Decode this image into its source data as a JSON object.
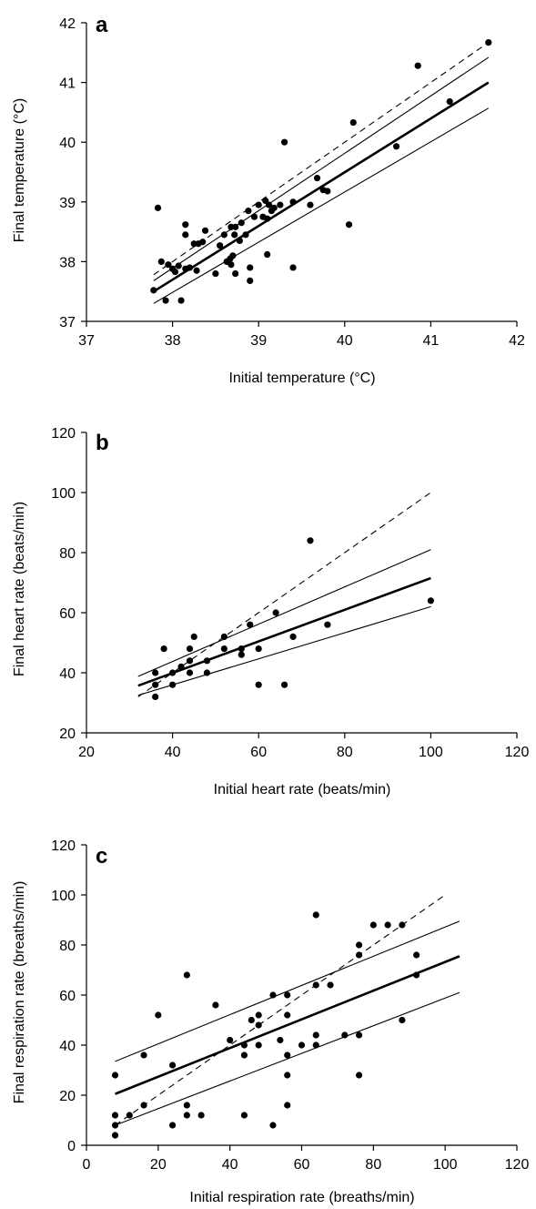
{
  "chart_data": [
    {
      "type": "scatter",
      "panel_label": "a",
      "xlabel": "Initial temperature (°C)",
      "ylabel": "Final temperature (°C)",
      "xlim": [
        37,
        42
      ],
      "ylim": [
        37,
        42
      ],
      "xticks": [
        37,
        38,
        39,
        40,
        41,
        42
      ],
      "yticks": [
        37,
        38,
        39,
        40,
        41,
        42
      ],
      "grid": false,
      "points": [
        [
          37.78,
          37.52
        ],
        [
          37.83,
          38.9
        ],
        [
          37.87,
          38.0
        ],
        [
          37.92,
          37.35
        ],
        [
          37.95,
          37.95
        ],
        [
          38.0,
          37.88
        ],
        [
          38.03,
          37.83
        ],
        [
          38.07,
          37.93
        ],
        [
          38.1,
          37.35
        ],
        [
          38.15,
          37.88
        ],
        [
          38.15,
          38.62
        ],
        [
          38.15,
          38.45
        ],
        [
          38.2,
          37.9
        ],
        [
          38.25,
          38.3
        ],
        [
          38.28,
          37.85
        ],
        [
          38.3,
          38.3
        ],
        [
          38.35,
          38.33
        ],
        [
          38.38,
          38.52
        ],
        [
          38.5,
          37.8
        ],
        [
          38.55,
          38.27
        ],
        [
          38.6,
          38.45
        ],
        [
          38.63,
          38.0
        ],
        [
          38.67,
          38.05
        ],
        [
          38.68,
          37.95
        ],
        [
          38.68,
          38.58
        ],
        [
          38.7,
          38.1
        ],
        [
          38.72,
          38.45
        ],
        [
          38.73,
          38.58
        ],
        [
          38.73,
          37.8
        ],
        [
          38.78,
          38.35
        ],
        [
          38.8,
          38.65
        ],
        [
          38.85,
          38.45
        ],
        [
          38.88,
          38.85
        ],
        [
          38.9,
          37.9
        ],
        [
          38.9,
          37.68
        ],
        [
          38.95,
          38.75
        ],
        [
          39.0,
          38.95
        ],
        [
          39.05,
          38.75
        ],
        [
          39.08,
          39.02
        ],
        [
          39.1,
          38.72
        ],
        [
          39.1,
          38.12
        ],
        [
          39.12,
          38.95
        ],
        [
          39.15,
          38.85
        ],
        [
          39.18,
          38.9
        ],
        [
          39.25,
          38.95
        ],
        [
          39.3,
          40.0
        ],
        [
          39.4,
          37.9
        ],
        [
          39.4,
          39.0
        ],
        [
          39.6,
          38.95
        ],
        [
          39.68,
          39.4
        ],
        [
          39.75,
          39.2
        ],
        [
          39.8,
          39.18
        ],
        [
          40.05,
          38.62
        ],
        [
          40.1,
          40.33
        ],
        [
          40.6,
          39.93
        ],
        [
          40.85,
          41.28
        ],
        [
          41.22,
          40.68
        ],
        [
          41.67,
          41.67
        ]
      ],
      "regression": {
        "x_range": [
          37.78,
          41.67
        ],
        "y_range": [
          37.5,
          41.0
        ]
      },
      "confidence_upper": {
        "x_range": [
          37.78,
          41.67
        ],
        "y_range": [
          37.68,
          41.42
        ]
      },
      "confidence_lower": {
        "x_range": [
          37.78,
          41.67
        ],
        "y_range": [
          37.3,
          40.57
        ]
      },
      "identity_line": {
        "x_range": [
          37.78,
          41.67
        ],
        "y_range": [
          37.78,
          41.67
        ]
      }
    },
    {
      "type": "scatter",
      "panel_label": "b",
      "xlabel": "Initial heart rate (beats/min)",
      "ylabel": "Final heart rate (beats/min)",
      "xlim": [
        20,
        120
      ],
      "ylim": [
        20,
        120
      ],
      "xticks": [
        20,
        40,
        60,
        80,
        100,
        120
      ],
      "yticks": [
        20,
        40,
        60,
        80,
        100,
        120
      ],
      "grid": false,
      "points": [
        [
          36,
          40
        ],
        [
          36,
          36
        ],
        [
          36,
          32
        ],
        [
          38,
          48
        ],
        [
          40,
          36
        ],
        [
          40,
          40
        ],
        [
          42,
          42
        ],
        [
          44,
          44
        ],
        [
          44,
          40
        ],
        [
          44,
          48
        ],
        [
          45,
          52
        ],
        [
          48,
          44
        ],
        [
          48,
          40
        ],
        [
          52,
          52
        ],
        [
          52,
          48
        ],
        [
          56,
          48
        ],
        [
          56,
          46
        ],
        [
          58,
          56
        ],
        [
          60,
          48
        ],
        [
          60,
          36
        ],
        [
          64,
          60
        ],
        [
          66,
          36
        ],
        [
          68,
          52
        ],
        [
          72,
          84
        ],
        [
          76,
          56
        ],
        [
          100,
          64
        ]
      ],
      "regression": {
        "x_range": [
          32,
          100
        ],
        "y_range": [
          35.7,
          71.5
        ]
      },
      "confidence_upper": {
        "x_range": [
          32,
          100
        ],
        "y_range": [
          38.8,
          81.0
        ]
      },
      "confidence_lower": {
        "x_range": [
          32,
          100
        ],
        "y_range": [
          32.5,
          62.0
        ]
      },
      "identity_line": {
        "x_range": [
          32,
          100
        ],
        "y_range": [
          32,
          100
        ]
      }
    },
    {
      "type": "scatter",
      "panel_label": "c",
      "xlabel": "Initial respiration rate (breaths/min)",
      "ylabel": "Final respiration rate (breaths/min)",
      "xlim": [
        0,
        120
      ],
      "ylim": [
        0,
        120
      ],
      "xticks": [
        0,
        20,
        40,
        60,
        80,
        100,
        120
      ],
      "yticks": [
        0,
        20,
        40,
        60,
        80,
        100,
        120
      ],
      "grid": false,
      "points": [
        [
          8,
          28
        ],
        [
          8,
          12
        ],
        [
          8,
          8
        ],
        [
          8,
          4
        ],
        [
          12,
          12
        ],
        [
          16,
          36
        ],
        [
          16,
          16
        ],
        [
          20,
          52
        ],
        [
          24,
          32
        ],
        [
          24,
          8
        ],
        [
          28,
          68
        ],
        [
          28,
          16
        ],
        [
          28,
          12
        ],
        [
          32,
          12
        ],
        [
          36,
          56
        ],
        [
          40,
          42
        ],
        [
          44,
          40
        ],
        [
          44,
          36
        ],
        [
          44,
          12
        ],
        [
          46,
          50
        ],
        [
          48,
          52
        ],
        [
          48,
          48
        ],
        [
          48,
          40
        ],
        [
          52,
          60
        ],
        [
          52,
          8
        ],
        [
          54,
          42
        ],
        [
          56,
          60
        ],
        [
          56,
          52
        ],
        [
          56,
          36
        ],
        [
          56,
          28
        ],
        [
          56,
          16
        ],
        [
          60,
          40
        ],
        [
          64,
          92
        ],
        [
          64,
          64
        ],
        [
          64,
          44
        ],
        [
          64,
          40
        ],
        [
          68,
          64
        ],
        [
          72,
          44
        ],
        [
          76,
          80
        ],
        [
          76,
          76
        ],
        [
          76,
          44
        ],
        [
          76,
          28
        ],
        [
          80,
          88
        ],
        [
          84,
          88
        ],
        [
          88,
          88
        ],
        [
          88,
          50
        ],
        [
          92,
          76
        ],
        [
          92,
          68
        ]
      ],
      "regression": {
        "x_range": [
          8,
          104
        ],
        "y_range": [
          20.5,
          75.5
        ]
      },
      "confidence_upper": {
        "x_range": [
          8,
          104
        ],
        "y_range": [
          33.5,
          89.5
        ]
      },
      "confidence_lower": {
        "x_range": [
          8,
          104
        ],
        "y_range": [
          8.0,
          61.0
        ]
      },
      "identity_line": {
        "x_range": [
          8,
          100
        ],
        "y_range": [
          8,
          100
        ]
      }
    }
  ]
}
